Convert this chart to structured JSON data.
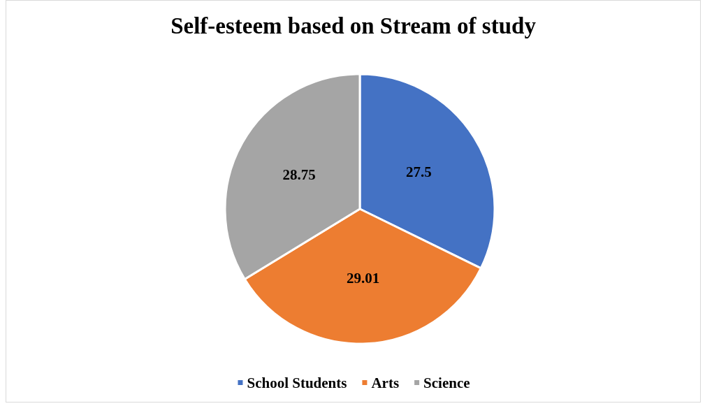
{
  "chart_data": {
    "type": "pie",
    "title": "Self-esteem based on Stream of study",
    "categories": [
      "School Students",
      "Arts",
      "Science"
    ],
    "values": [
      27.5,
      29.01,
      28.75
    ],
    "colors": [
      "#4472c4",
      "#ed7d31",
      "#a5a5a5"
    ],
    "data_labels": true,
    "legend": "bottom"
  }
}
